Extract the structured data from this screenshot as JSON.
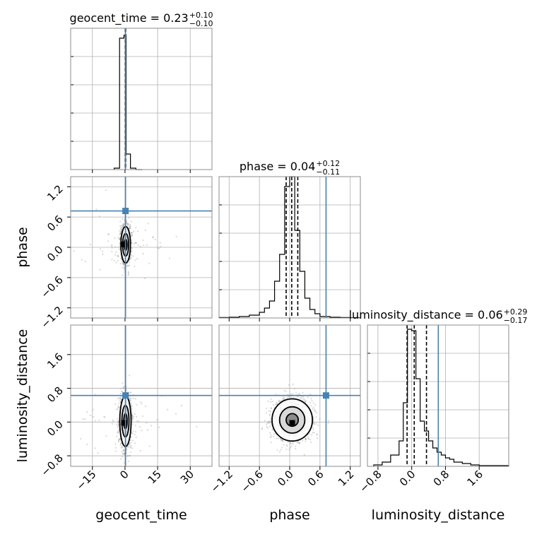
{
  "chart_data": {
    "type": "corner",
    "parameters": [
      "geocent_time",
      "phase",
      "luminosity_distance"
    ],
    "truths": {
      "geocent_time": 0.23,
      "phase": 0.72,
      "luminosity_distance": 0.63
    },
    "titles": [
      {
        "param": "geocent_time",
        "prefix": "geocent_time = 0.23",
        "plus": "+0.10",
        "minus": "−0.10"
      },
      {
        "param": "phase",
        "prefix": "phase = 0.04",
        "plus": "+0.12",
        "minus": "−0.11"
      },
      {
        "param": "luminosity_distance",
        "prefix": "luminosity_distance = 0.06",
        "plus": "+0.29",
        "minus": "−0.17"
      }
    ],
    "axis_labels": {
      "x": [
        "geocent_time",
        "phase",
        "luminosity_distance"
      ],
      "y": [
        "phase",
        "luminosity_distance"
      ]
    },
    "ranges": {
      "geocent_time": [
        -25,
        40
      ],
      "phase": [
        -1.4,
        1.4
      ],
      "luminosity_distance": [
        -1.05,
        2.3
      ]
    },
    "ticks": {
      "geocent_time": {
        "values": [
          -15,
          0,
          15,
          30
        ],
        "labels": [
          "−15",
          "0",
          "15",
          "30"
        ]
      },
      "phase": {
        "values": [
          -1.2,
          -0.6,
          0.0,
          0.6,
          1.2
        ],
        "labels": [
          "−1.2",
          "−0.6",
          "0.0",
          "0.6",
          "1.2"
        ]
      },
      "luminosity_distance": {
        "values": [
          -0.8,
          0.0,
          0.8,
          1.6
        ],
        "labels": [
          "−0.8",
          "0.0",
          "0.8",
          "1.6"
        ]
      }
    },
    "histograms": {
      "geocent_time": {
        "bin_edges": [
          -5,
          -2.5,
          -0.5,
          0.5,
          2.5,
          5,
          8
        ],
        "counts": [
          0.01,
          0.93,
          0.95,
          0.11,
          0.01,
          0.0
        ],
        "quantiles": [
          0.13,
          0.23,
          0.33
        ]
      },
      "phase": {
        "bin_edges": [
          -1.4,
          -1.2,
          -1.0,
          -0.8,
          -0.6,
          -0.5,
          -0.4,
          -0.3,
          -0.2,
          -0.1,
          0.0,
          0.1,
          0.2,
          0.3,
          0.4,
          0.5,
          0.6,
          0.8,
          1.0,
          1.2,
          1.4
        ],
        "counts": [
          0.003,
          0.005,
          0.01,
          0.02,
          0.04,
          0.07,
          0.12,
          0.26,
          0.45,
          0.93,
          1.0,
          0.62,
          0.33,
          0.14,
          0.06,
          0.03,
          0.01,
          0.005,
          0.003,
          0.002
        ],
        "quantiles": [
          -0.07,
          0.04,
          0.16
        ]
      },
      "luminosity_distance": {
        "bin_edges": [
          -0.9,
          -0.7,
          -0.5,
          -0.3,
          -0.2,
          -0.1,
          0.0,
          0.1,
          0.2,
          0.3,
          0.4,
          0.5,
          0.6,
          0.7,
          0.8,
          0.9,
          1.0,
          1.2,
          1.4,
          1.6,
          2.3
        ],
        "counts": [
          0.01,
          0.03,
          0.08,
          0.18,
          0.45,
          0.97,
          0.96,
          0.62,
          0.32,
          0.25,
          0.18,
          0.13,
          0.1,
          0.08,
          0.06,
          0.05,
          0.03,
          0.02,
          0.01,
          0.005
        ],
        "quantiles": [
          -0.11,
          0.06,
          0.35
        ]
      }
    },
    "scatter_2d": [
      {
        "x": "geocent_time",
        "y": "phase",
        "mean": [
          0.3,
          0.05
        ],
        "sigma": [
          1.1,
          0.18
        ],
        "mode": [
          -0.3,
          0.06
        ]
      },
      {
        "x": "geocent_time",
        "y": "luminosity_distance",
        "mean": [
          0.2,
          0.02
        ],
        "sigma": [
          1.3,
          0.3
        ],
        "mode": [
          -0.5,
          -0.02
        ]
      },
      {
        "x": "phase",
        "y": "luminosity_distance",
        "mean": [
          0.05,
          0.05
        ],
        "sigma": [
          0.2,
          0.25
        ],
        "mode": [
          0.05,
          -0.02
        ]
      }
    ],
    "truth_color": "#4682b4",
    "grid": true
  }
}
